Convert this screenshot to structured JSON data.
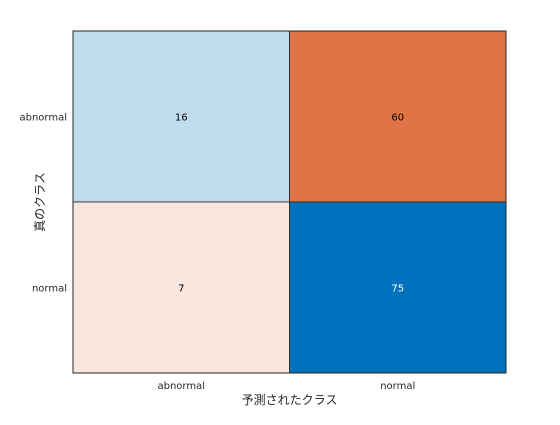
{
  "chart_data": {
    "type": "heatmap",
    "title": "",
    "xlabel": "予測されたクラス",
    "ylabel": "真のクラス",
    "x_categories": [
      "abnormal",
      "normal"
    ],
    "y_categories": [
      "abnormal",
      "normal"
    ],
    "values": [
      [
        16,
        60
      ],
      [
        7,
        75
      ]
    ],
    "cell_colors": [
      [
        "#bfdbee",
        "#e17447"
      ],
      [
        "#f9e6df",
        "#0072bd"
      ]
    ],
    "cell_text_colors": [
      [
        "#000000",
        "#000000"
      ],
      [
        "#000000",
        "#ffffff"
      ]
    ],
    "grid": true
  }
}
